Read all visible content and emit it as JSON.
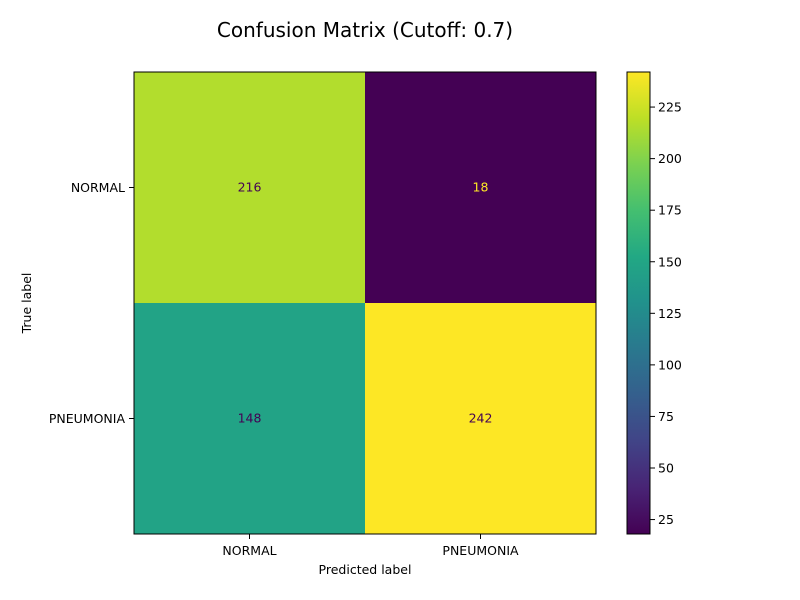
{
  "chart_data": {
    "type": "heatmap",
    "title": "Confusion Matrix (Cutoff: 0.7)",
    "xlabel": "Predicted label",
    "ylabel": "True label",
    "x_categories": [
      "NORMAL",
      "PNEUMONIA"
    ],
    "y_categories": [
      "NORMAL",
      "PNEUMONIA"
    ],
    "values": [
      [
        216,
        18
      ],
      [
        148,
        242
      ]
    ],
    "colormap": "viridis",
    "colorbar": {
      "min": 18,
      "max": 242,
      "ticks": [
        "25",
        "50",
        "75",
        "100",
        "125",
        "150",
        "175",
        "200",
        "225"
      ]
    },
    "grid": false
  }
}
